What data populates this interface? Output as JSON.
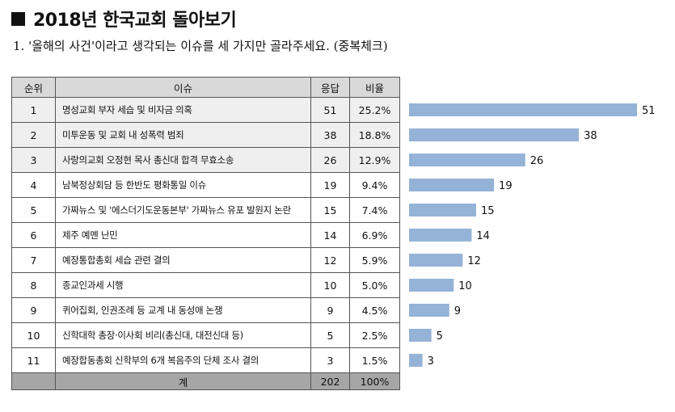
{
  "header": {
    "title": "2018년 한국교회 돌아보기",
    "question": "1. '올해의 사건'이라고 생각되는 이슈를 세 가지만 골라주세요. (중복체크)"
  },
  "table": {
    "columns": [
      "순위",
      "이슈",
      "응답",
      "비율"
    ],
    "rows": [
      {
        "rank": "1",
        "issue": "명성교회 부자 세습 및 비자금 의혹",
        "count": "51",
        "pct": "25.2%"
      },
      {
        "rank": "2",
        "issue": "미투운동 및 교회 내 성폭력 범죄",
        "count": "38",
        "pct": "18.8%"
      },
      {
        "rank": "3",
        "issue": "사랑의교회 오정현 목사 총신대 합격 무효소송",
        "count": "26",
        "pct": "12.9%"
      },
      {
        "rank": "4",
        "issue": "남북정상회담 등 한반도 평화통일 이슈",
        "count": "19",
        "pct": "9.4%"
      },
      {
        "rank": "5",
        "issue": "가짜뉴스 및 '에스더기도운동본부' 가짜뉴스 유포 발원지 논란",
        "count": "15",
        "pct": "7.4%"
      },
      {
        "rank": "6",
        "issue": "제주 예멘 난민",
        "count": "14",
        "pct": "6.9%"
      },
      {
        "rank": "7",
        "issue": "예장통합총회 세습 관련 결의",
        "count": "12",
        "pct": "5.9%"
      },
      {
        "rank": "8",
        "issue": "종교인과세 시행",
        "count": "10",
        "pct": "5.0%"
      },
      {
        "rank": "9",
        "issue": "퀴어집회, 인권조례 등 교계 내 동성애 논쟁",
        "count": "9",
        "pct": "4.5%"
      },
      {
        "rank": "10",
        "issue": "신학대학 총장·이사회 비리(총신대, 대전신대 등)",
        "count": "5",
        "pct": "2.5%"
      },
      {
        "rank": "11",
        "issue": "예장합동총회 신학부의 6개 복음주의 단체 조사 결의",
        "count": "3",
        "pct": "1.5%"
      }
    ],
    "total": {
      "label": "계",
      "count": "202",
      "pct": "100%"
    }
  },
  "chart_data": {
    "type": "bar",
    "orientation": "horizontal",
    "categories": [
      "명성교회 부자 세습 및 비자금 의혹",
      "미투운동 및 교회 내 성폭력 범죄",
      "사랑의교회 오정현 목사 총신대 합격 무효소송",
      "남북정상회담 등 한반도 평화통일 이슈",
      "가짜뉴스 및 '에스더기도운동본부' 가짜뉴스 유포 발원지 논란",
      "제주 예멘 난민",
      "예장통합총회 세습 관련 결의",
      "종교인과세 시행",
      "퀴어집회, 인권조례 등 교계 내 동성애 논쟁",
      "신학대학 총장·이사회 비리(총신대, 대전신대 등)",
      "예장합동총회 신학부의 6개 복음주의 단체 조사 결의"
    ],
    "values": [
      51,
      38,
      26,
      19,
      15,
      14,
      12,
      10,
      9,
      5,
      3
    ],
    "data_labels": [
      "51",
      "38",
      "26",
      "19",
      "15",
      "14",
      "12",
      "10",
      "9",
      "5",
      "3"
    ],
    "xlim": [
      0,
      51
    ],
    "bar_color": "#95b3d7",
    "grid": false,
    "legend": "none"
  }
}
